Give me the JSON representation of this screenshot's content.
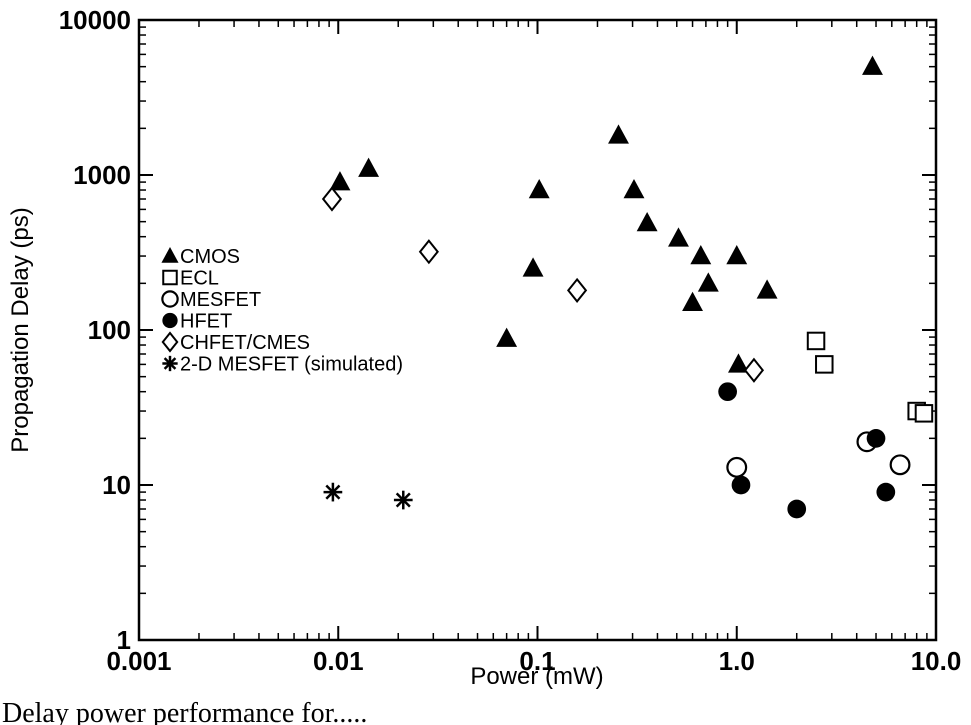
{
  "chart_data": {
    "type": "scatter",
    "title": "",
    "xlabel": "Power (mW)",
    "ylabel": "Propagation Delay (ps)",
    "xscale": "log",
    "yscale": "log",
    "xlim": [
      0.001,
      10.0
    ],
    "ylim": [
      1,
      10000
    ],
    "x_ticks": [
      0.001,
      0.01,
      0.1,
      1.0,
      10.0
    ],
    "x_tick_labels": [
      "0.001",
      "0.01",
      "0.1",
      "1.0",
      "10.0"
    ],
    "y_ticks": [
      1,
      10,
      100,
      1000,
      10000
    ],
    "y_tick_labels": [
      "1",
      "10",
      "100",
      "1000",
      "10000"
    ],
    "grid": false,
    "legend_position": "left",
    "series": [
      {
        "name": "CMOS",
        "marker": "filled-triangle",
        "points": [
          {
            "x": 0.0102,
            "y": 900
          },
          {
            "x": 0.0142,
            "y": 1100
          },
          {
            "x": 0.07,
            "y": 88
          },
          {
            "x": 0.095,
            "y": 250
          },
          {
            "x": 0.102,
            "y": 800
          },
          {
            "x": 0.255,
            "y": 1800
          },
          {
            "x": 0.305,
            "y": 800
          },
          {
            "x": 0.355,
            "y": 490
          },
          {
            "x": 0.51,
            "y": 390
          },
          {
            "x": 0.6,
            "y": 150
          },
          {
            "x": 0.66,
            "y": 300
          },
          {
            "x": 0.72,
            "y": 200
          },
          {
            "x": 1.0,
            "y": 300
          },
          {
            "x": 1.02,
            "y": 60
          },
          {
            "x": 1.42,
            "y": 180
          },
          {
            "x": 4.8,
            "y": 5000
          }
        ]
      },
      {
        "name": "ECL",
        "marker": "open-square",
        "points": [
          {
            "x": 2.5,
            "y": 85
          },
          {
            "x": 2.75,
            "y": 60
          },
          {
            "x": 8.0,
            "y": 30
          },
          {
            "x": 8.7,
            "y": 29
          }
        ]
      },
      {
        "name": "MESFET",
        "marker": "open-circle",
        "points": [
          {
            "x": 1.0,
            "y": 13
          },
          {
            "x": 4.5,
            "y": 19
          },
          {
            "x": 6.6,
            "y": 13.5
          }
        ]
      },
      {
        "name": "HFET",
        "marker": "filled-circle",
        "points": [
          {
            "x": 0.9,
            "y": 40
          },
          {
            "x": 1.05,
            "y": 10
          },
          {
            "x": 2.0,
            "y": 7
          },
          {
            "x": 5.0,
            "y": 20
          },
          {
            "x": 5.6,
            "y": 9
          }
        ]
      },
      {
        "name": "CHFET/CMES",
        "marker": "open-diamond",
        "points": [
          {
            "x": 0.0093,
            "y": 700
          },
          {
            "x": 0.0285,
            "y": 320
          },
          {
            "x": 0.158,
            "y": 180
          },
          {
            "x": 1.22,
            "y": 55
          }
        ]
      },
      {
        "name": "2-D MESFET (simulated)",
        "marker": "asterisk",
        "points": [
          {
            "x": 0.0094,
            "y": 9
          },
          {
            "x": 0.0212,
            "y": 8
          }
        ]
      }
    ]
  },
  "caption": "Delay power performance for....."
}
